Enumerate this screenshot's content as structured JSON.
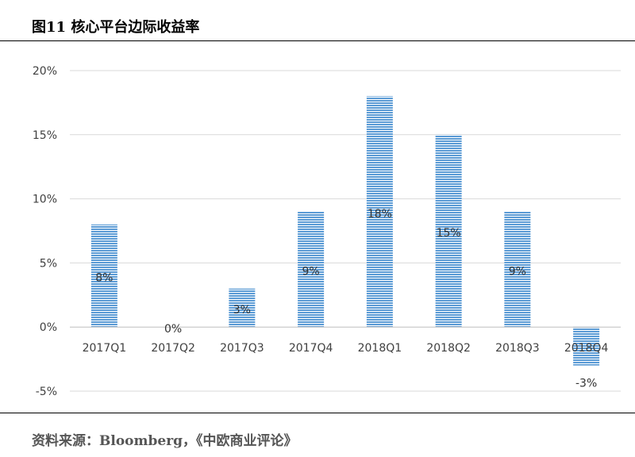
{
  "figure": {
    "title": "图11  核心平台边际收益率",
    "source": "资料来源：Bloomberg，《中欧商业评论》"
  },
  "chart_data": {
    "type": "bar",
    "title": "",
    "xlabel": "",
    "ylabel": "",
    "categories": [
      "2017Q1",
      "2017Q2",
      "2017Q3",
      "2017Q4",
      "2018Q1",
      "2018Q2",
      "2018Q3",
      "2018Q4"
    ],
    "values": [
      8,
      0,
      3,
      9,
      18,
      15,
      9,
      -3
    ],
    "data_labels": [
      "8%",
      "0%",
      "3%",
      "9%",
      "18%",
      "15%",
      "9%",
      "-3%"
    ],
    "yticks": [
      "20%",
      "15%",
      "10%",
      "5%",
      "0%",
      "-5%"
    ],
    "ytick_values": [
      20,
      15,
      10,
      5,
      0,
      -5
    ],
    "ylim": [
      -5,
      20
    ],
    "grid": true,
    "bar_color": "#5b9bd5",
    "bar_stripe_color": "#ffffff"
  }
}
